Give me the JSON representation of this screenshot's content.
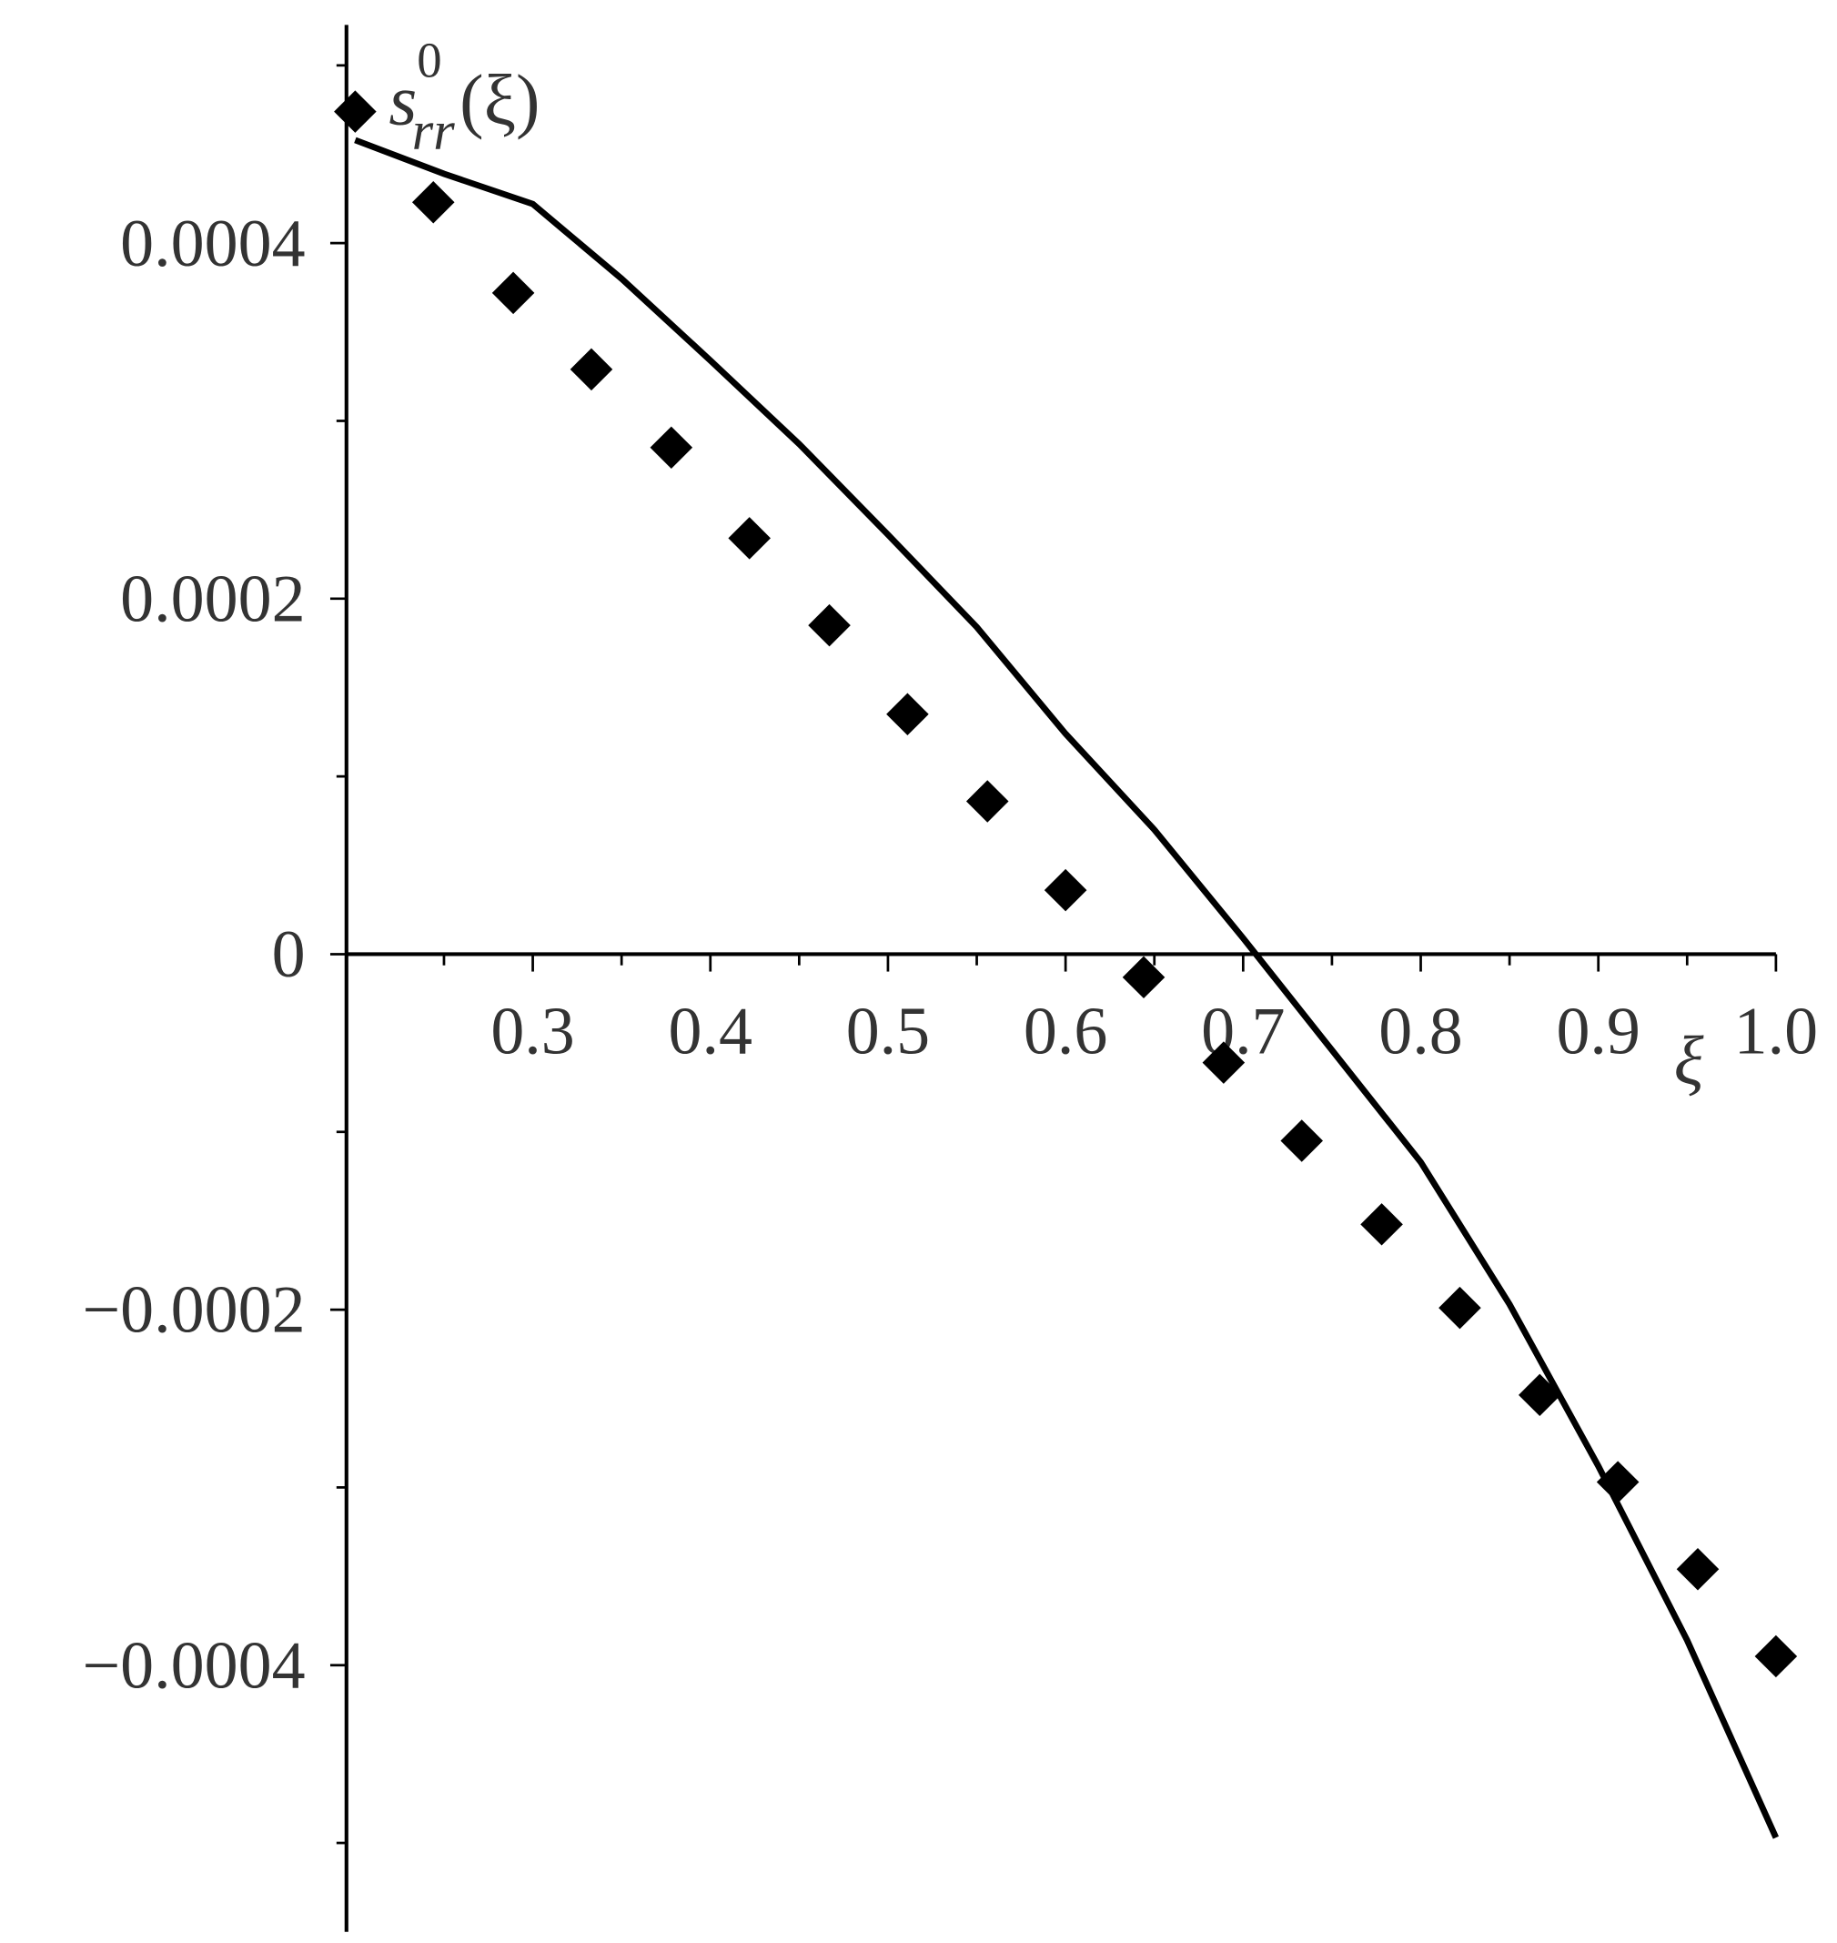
{
  "chart_data": {
    "type": "line",
    "xlabel": "ξ",
    "ylabel": {
      "base": "s",
      "sup": "0",
      "sub": "rr",
      "arg": "(ξ)"
    },
    "xlim": [
      0.2,
      1.0
    ],
    "ylim": [
      -0.00055,
      0.00052
    ],
    "xticks": [
      0.3,
      0.4,
      0.5,
      0.6,
      0.7,
      0.8,
      0.9,
      {
        "value": 1,
        "label": "1.0"
      }
    ],
    "xminorticks": [
      0.25,
      0.35,
      0.45,
      0.55,
      0.65,
      0.75,
      0.85,
      0.95
    ],
    "yticks": [
      {
        "value": -0.0004,
        "label": "−0.0004"
      },
      {
        "value": -0.0002,
        "label": "−0.0002"
      },
      0,
      0.0002,
      0.0004
    ],
    "yminorticks": [
      -0.0005,
      -0.0003,
      -0.0001,
      0.0001,
      0.0003,
      0.0005
    ],
    "series": [
      {
        "style": "line",
        "color": "#000000",
        "x": [
          0.2,
          0.25,
          0.3,
          0.35,
          0.4,
          0.45,
          0.5,
          0.55,
          0.6,
          0.65,
          0.7,
          0.75,
          0.8,
          0.85,
          0.9,
          0.95,
          1.0
        ],
        "values": [
          0.000458,
          0.000439,
          0.000422,
          0.00038,
          0.000334,
          0.000287,
          0.000236,
          0.000184,
          0.000124,
          7e-05,
          9e-06,
          -5.4e-05,
          -0.000117,
          -0.000197,
          -0.000288,
          -0.000386,
          -0.000497
        ]
      },
      {
        "style": "diamond",
        "color": "#000000",
        "x": [
          0.2,
          0.244,
          0.289,
          0.333,
          0.378,
          0.422,
          0.467,
          0.511,
          0.556,
          0.6,
          0.644,
          0.689,
          0.733,
          0.778,
          0.822,
          0.867,
          0.911,
          0.956,
          1.0
        ],
        "values": [
          0.000474,
          0.000423,
          0.000372,
          0.000329,
          0.000285,
          0.000234,
          0.000185,
          0.000135,
          8.6e-05,
          3.6e-05,
          -1.3e-05,
          -6.1e-05,
          -0.000105,
          -0.000152,
          -0.000199,
          -0.000248,
          -0.000297,
          -0.000346,
          -0.000395
        ]
      }
    ]
  }
}
